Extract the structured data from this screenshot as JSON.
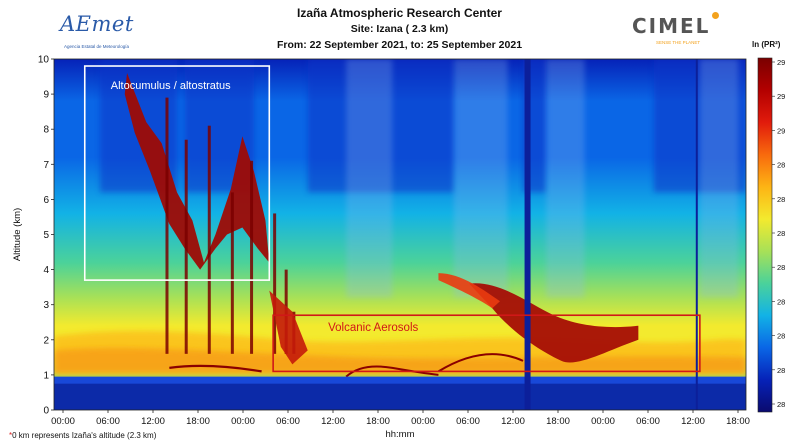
{
  "header": {
    "title": "Izaña Atmospheric Research Center",
    "site": "Site: Izana ( 2.3 km)",
    "date_range": "From: 22 September 2021, to: 25 September 2021"
  },
  "logos": {
    "left": {
      "name": "AEmet",
      "subtitle": "Agencia Estatal de Meteorología"
    },
    "right": {
      "name": "CIMEL",
      "subtitle": "SENSE THE PLANET"
    }
  },
  "footnote": {
    "star": "*",
    "text": "0 km represents Izaña's altitude (2.3 km)"
  },
  "colorbar": {
    "unit": "ln (PR²)",
    "tick_labels": [
      "29",
      "29",
      "29",
      "28",
      "28",
      "28",
      "28",
      "28",
      "28",
      "28",
      "28"
    ],
    "colors": [
      "#7a0000",
      "#b30000",
      "#e11b0c",
      "#f86a0d",
      "#fdb414",
      "#f3ea2e",
      "#a8e157",
      "#4bd29a",
      "#12b2e6",
      "#0a66e6",
      "#0622b8",
      "#0a0a6e"
    ]
  },
  "chart_data": {
    "type": "heatmap",
    "title": "Izaña Atmospheric Research Center",
    "xlabel": "hh:mm",
    "ylabel": "Altitude (km)",
    "x_ticks": [
      "00:00",
      "06:00",
      "12:00",
      "18:00",
      "00:00",
      "06:00",
      "12:00",
      "18:00",
      "00:00",
      "06:00",
      "12:00",
      "18:00",
      "00:00",
      "06:00",
      "12:00",
      "18:00"
    ],
    "y_ticks": [
      0,
      1,
      2,
      3,
      4,
      5,
      6,
      7,
      8,
      9,
      10
    ],
    "ylim": [
      0,
      10
    ],
    "xlim_hours": [
      0,
      90
    ],
    "grid": false,
    "annotations": [
      {
        "label": "Altocumulus / altostratus",
        "x_range_hours": [
          4,
          28
        ],
        "y_range_km": [
          3.7,
          9.8
        ],
        "color": "#ffffff"
      },
      {
        "label": "Volcanic Aerosols",
        "x_range_hours": [
          28.5,
          84
        ],
        "y_range_km": [
          1.1,
          2.7
        ],
        "color": "#d01818"
      }
    ],
    "features": [
      {
        "name": "aerosol_layer",
        "x_range_hours": [
          0,
          90
        ],
        "y_range_km": [
          1.0,
          2.3
        ]
      },
      {
        "name": "volcanic_plume",
        "x_range_hours": [
          55,
          72
        ],
        "y_range_km": [
          1.3,
          3.8
        ]
      },
      {
        "name": "cloud",
        "x_range_hours": [
          9,
          31
        ],
        "y_range_km": [
          1.5,
          10
        ]
      },
      {
        "name": "boundary",
        "x_range_hours": [
          0,
          90
        ],
        "y_range_km": [
          0.75,
          0.95
        ]
      }
    ]
  }
}
